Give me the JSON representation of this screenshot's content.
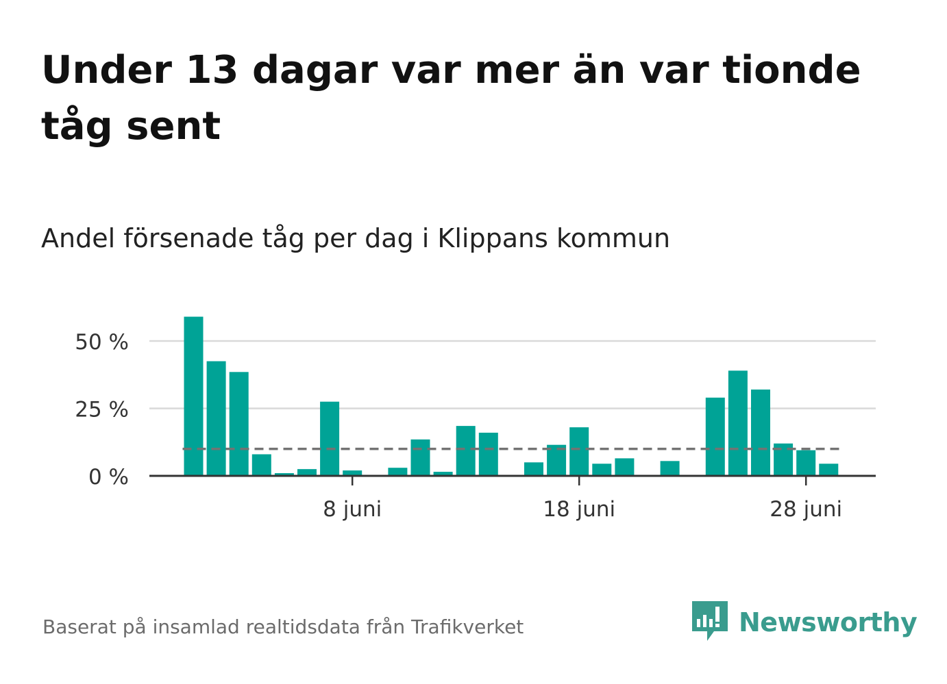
{
  "title": "Under 13 dagar var mer än var tionde tåg sent",
  "subtitle": "Andel försenade tåg per dag i Klippans kommun",
  "source": "Baserat på insamlad realtidsdata från Trafikverket",
  "brand": {
    "name": "Newsworthy",
    "icon": "newsworthy-logo-icon",
    "color": "#3a9c8e"
  },
  "colors": {
    "bar": "#00a396",
    "reference_line": "#737373",
    "grid": "#d9d9d9",
    "axis": "#333333"
  },
  "chart_data": {
    "type": "bar",
    "x_unit": "date",
    "categories": [
      "2023-06-01",
      "2023-06-02",
      "2023-06-03",
      "2023-06-04",
      "2023-06-05",
      "2023-06-06",
      "2023-06-07",
      "2023-06-08",
      "2023-06-09",
      "2023-06-10",
      "2023-06-11",
      "2023-06-12",
      "2023-06-13",
      "2023-06-14",
      "2023-06-15",
      "2023-06-16",
      "2023-06-17",
      "2023-06-18",
      "2023-06-19",
      "2023-06-20",
      "2023-06-21",
      "2023-06-22",
      "2023-06-23",
      "2023-06-24",
      "2023-06-25",
      "2023-06-26",
      "2023-06-27",
      "2023-06-28",
      "2023-06-29",
      "2023-06-30"
    ],
    "values": [
      59,
      42.5,
      38.5,
      8,
      1,
      2.5,
      27.5,
      2,
      0,
      3,
      13.5,
      1.5,
      18.5,
      16,
      0,
      5,
      11.5,
      18,
      4.5,
      6.5,
      0,
      5.5,
      0,
      29,
      39,
      32,
      12,
      9.5,
      4.5,
      null
    ],
    "reference_line": 10,
    "ylim": [
      0,
      62
    ],
    "yticks": [
      {
        "value": 0,
        "label": "0 %"
      },
      {
        "value": 25,
        "label": "25 %"
      },
      {
        "value": 50,
        "label": "50 %"
      }
    ],
    "xticks": [
      {
        "date": "2023-06-08",
        "label": "8 juni"
      },
      {
        "date": "2023-06-18",
        "label": "18 juni"
      },
      {
        "date": "2023-06-28",
        "label": "28 juni"
      }
    ],
    "grid": true,
    "legend": "none"
  }
}
